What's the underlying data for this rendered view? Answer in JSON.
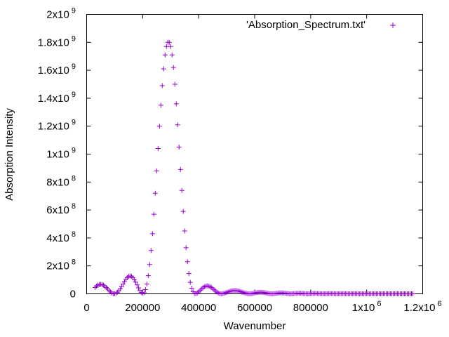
{
  "chart_data": {
    "type": "scatter",
    "xlabel": "Wavenumber",
    "ylabel": "Absorption Intensity",
    "xlim": [
      0,
      1200000
    ],
    "ylim": [
      0,
      2000000000
    ],
    "x_ticks": [
      {
        "value": 0,
        "label": "0"
      },
      {
        "value": 200000,
        "label": "200000"
      },
      {
        "value": 400000,
        "label": "400000"
      },
      {
        "value": 600000,
        "label": "600000"
      },
      {
        "value": 800000,
        "label": "800000"
      },
      {
        "value": 1000000,
        "mant": "1x10",
        "exp": "6"
      },
      {
        "value": 1200000,
        "mant": "1.2x10",
        "exp": "6"
      }
    ],
    "y_ticks": [
      {
        "value": 0,
        "label": "0"
      },
      {
        "value": 200000000,
        "mant": "2x10",
        "exp": "8"
      },
      {
        "value": 400000000,
        "mant": "4x10",
        "exp": "8"
      },
      {
        "value": 600000000,
        "mant": "6x10",
        "exp": "8"
      },
      {
        "value": 800000000,
        "mant": "8x10",
        "exp": "8"
      },
      {
        "value": 1000000000,
        "mant": "1x10",
        "exp": "9"
      },
      {
        "value": 1200000000,
        "mant": "1.2x10",
        "exp": "9"
      },
      {
        "value": 1400000000,
        "mant": "1.4x10",
        "exp": "9"
      },
      {
        "value": 1600000000,
        "mant": "1.6x10",
        "exp": "9"
      },
      {
        "value": 1800000000,
        "mant": "1.8x10",
        "exp": "9"
      },
      {
        "value": 2000000000,
        "mant": "2x10",
        "exp": "9"
      }
    ],
    "grid": false,
    "legend_position": "top-right",
    "marker": "+",
    "color": "#9400d3",
    "series": [
      {
        "name": "'Absorption_Spectrum.txt'",
        "points": [
          [
            30000,
            45000000
          ],
          [
            35000,
            55000000
          ],
          [
            40000,
            62000000
          ],
          [
            45000,
            66000000
          ],
          [
            50000,
            68000000
          ],
          [
            55000,
            66000000
          ],
          [
            60000,
            62000000
          ],
          [
            65000,
            54000000
          ],
          [
            70000,
            45000000
          ],
          [
            75000,
            35000000
          ],
          [
            80000,
            24000000
          ],
          [
            85000,
            14000000
          ],
          [
            90000,
            6000000
          ],
          [
            95000,
            1500000
          ],
          [
            100000,
            800000
          ],
          [
            105000,
            4000000
          ],
          [
            110000,
            11000000
          ],
          [
            115000,
            22000000
          ],
          [
            120000,
            36000000
          ],
          [
            125000,
            52000000
          ],
          [
            130000,
            70000000
          ],
          [
            135000,
            88000000
          ],
          [
            140000,
            103000000
          ],
          [
            145000,
            116000000
          ],
          [
            150000,
            125000000
          ],
          [
            155000,
            128000000
          ],
          [
            160000,
            125000000
          ],
          [
            165000,
            116000000
          ],
          [
            170000,
            102000000
          ],
          [
            175000,
            84000000
          ],
          [
            180000,
            64000000
          ],
          [
            185000,
            43000000
          ],
          [
            190000,
            24000000
          ],
          [
            195000,
            10000000
          ],
          [
            200000,
            3000000
          ],
          [
            205000,
            8000000
          ],
          [
            210000,
            30000000
          ],
          [
            215000,
            70000000
          ],
          [
            220000,
            130000000
          ],
          [
            225000,
            210000000
          ],
          [
            230000,
            310000000
          ],
          [
            235000,
            430000000
          ],
          [
            240000,
            570000000
          ],
          [
            245000,
            720000000
          ],
          [
            250000,
            880000000
          ],
          [
            255000,
            1040000000
          ],
          [
            260000,
            1200000000
          ],
          [
            265000,
            1350000000
          ],
          [
            270000,
            1490000000
          ],
          [
            275000,
            1610000000
          ],
          [
            280000,
            1710000000
          ],
          [
            285000,
            1770000000
          ],
          [
            290000,
            1800000000
          ],
          [
            295000,
            1800000000
          ],
          [
            300000,
            1770000000
          ],
          [
            305000,
            1710000000
          ],
          [
            310000,
            1620000000
          ],
          [
            315000,
            1500000000
          ],
          [
            320000,
            1360000000
          ],
          [
            325000,
            1210000000
          ],
          [
            330000,
            1050000000
          ],
          [
            335000,
            890000000
          ],
          [
            340000,
            740000000
          ],
          [
            345000,
            590000000
          ],
          [
            350000,
            450000000
          ],
          [
            355000,
            330000000
          ],
          [
            360000,
            230000000
          ],
          [
            365000,
            145000000
          ],
          [
            370000,
            82000000
          ],
          [
            375000,
            40000000
          ],
          [
            380000,
            15000000
          ],
          [
            385000,
            3000000
          ],
          [
            390000,
            1000000
          ],
          [
            395000,
            6000000
          ],
          [
            400000,
            14000000
          ],
          [
            405000,
            24000000
          ],
          [
            410000,
            34000000
          ],
          [
            415000,
            43000000
          ],
          [
            420000,
            50000000
          ],
          [
            425000,
            55000000
          ],
          [
            430000,
            57000000
          ],
          [
            435000,
            56000000
          ],
          [
            440000,
            52000000
          ],
          [
            445000,
            46000000
          ],
          [
            450000,
            38000000
          ],
          [
            455000,
            29000000
          ],
          [
            460000,
            20000000
          ],
          [
            465000,
            12000000
          ],
          [
            470000,
            6000000
          ],
          [
            475000,
            2000000
          ],
          [
            480000,
            500000
          ],
          [
            485000,
            1000000
          ],
          [
            490000,
            3000000
          ],
          [
            495000,
            6000000
          ],
          [
            500000,
            10000000
          ],
          [
            505000,
            14000000
          ],
          [
            510000,
            17000000
          ],
          [
            515000,
            20000000
          ],
          [
            520000,
            22000000
          ],
          [
            525000,
            23000000
          ],
          [
            530000,
            23500000
          ],
          [
            535000,
            23000000
          ],
          [
            540000,
            21500000
          ],
          [
            545000,
            19000000
          ],
          [
            550000,
            16000000
          ],
          [
            555000,
            12500000
          ],
          [
            560000,
            9000000
          ],
          [
            565000,
            6000000
          ],
          [
            570000,
            3500000
          ],
          [
            575000,
            1500000
          ],
          [
            580000,
            500000
          ],
          [
            585000,
            800000
          ],
          [
            590000,
            2000000
          ],
          [
            595000,
            4000000
          ],
          [
            600000,
            6000000
          ],
          [
            605000,
            8000000
          ],
          [
            610000,
            9500000
          ],
          [
            615000,
            10500000
          ],
          [
            620000,
            11000000
          ],
          [
            625000,
            11000000
          ],
          [
            630000,
            10000000
          ],
          [
            635000,
            8500000
          ],
          [
            640000,
            6500000
          ],
          [
            645000,
            4500000
          ],
          [
            650000,
            2500000
          ],
          [
            655000,
            1200000
          ],
          [
            660000,
            500000
          ],
          [
            665000,
            700000
          ],
          [
            670000,
            1500000
          ],
          [
            675000,
            2800000
          ],
          [
            680000,
            4200000
          ],
          [
            685000,
            5500000
          ],
          [
            690000,
            6300000
          ],
          [
            695000,
            6600000
          ],
          [
            700000,
            6400000
          ],
          [
            705000,
            5700000
          ],
          [
            710000,
            4500000
          ],
          [
            715000,
            3200000
          ],
          [
            720000,
            1900000
          ],
          [
            725000,
            900000
          ],
          [
            730000,
            300000
          ],
          [
            735000,
            500000
          ],
          [
            740000,
            1200000
          ],
          [
            745000,
            2200000
          ],
          [
            750000,
            3200000
          ],
          [
            755000,
            3900000
          ],
          [
            760000,
            4200000
          ],
          [
            765000,
            4000000
          ],
          [
            770000,
            3400000
          ],
          [
            775000,
            2500000
          ],
          [
            780000,
            1500000
          ],
          [
            785000,
            700000
          ],
          [
            790000,
            200000
          ],
          [
            795000,
            400000
          ],
          [
            800000,
            1000000
          ],
          [
            805000,
            1800000
          ],
          [
            810000,
            2500000
          ],
          [
            815000,
            2900000
          ],
          [
            820000,
            2900000
          ],
          [
            825000,
            2500000
          ],
          [
            830000,
            1800000
          ],
          [
            835000,
            1100000
          ],
          [
            840000,
            500000
          ],
          [
            845000,
            200000
          ],
          [
            850000,
            400000
          ],
          [
            855000,
            900000
          ],
          [
            860000,
            1500000
          ],
          [
            865000,
            1900000
          ],
          [
            870000,
            2000000
          ],
          [
            875000,
            1800000
          ],
          [
            880000,
            1300000
          ],
          [
            885000,
            800000
          ],
          [
            890000,
            300000
          ],
          [
            895000,
            200000
          ],
          [
            900000,
            500000
          ],
          [
            905000,
            1000000
          ],
          [
            910000,
            1400000
          ],
          [
            915000,
            1500000
          ],
          [
            920000,
            1300000
          ],
          [
            925000,
            900000
          ],
          [
            930000,
            500000
          ],
          [
            935000,
            200000
          ],
          [
            940000,
            300000
          ],
          [
            945000,
            700000
          ],
          [
            950000,
            1000000
          ],
          [
            955000,
            1200000
          ],
          [
            960000,
            1100000
          ],
          [
            965000,
            800000
          ],
          [
            970000,
            400000
          ],
          [
            975000,
            200000
          ],
          [
            980000,
            300000
          ],
          [
            985000,
            600000
          ],
          [
            990000,
            900000
          ],
          [
            995000,
            1000000
          ],
          [
            1000000,
            900000
          ],
          [
            1005000,
            600000
          ],
          [
            1010000,
            300000
          ],
          [
            1015000,
            200000
          ],
          [
            1020000,
            400000
          ],
          [
            1025000,
            600000
          ],
          [
            1030000,
            800000
          ],
          [
            1035000,
            800000
          ],
          [
            1040000,
            600000
          ],
          [
            1045000,
            400000
          ],
          [
            1050000,
            200000
          ],
          [
            1055000,
            200000
          ],
          [
            1060000,
            400000
          ],
          [
            1065000,
            600000
          ],
          [
            1070000,
            700000
          ],
          [
            1075000,
            600000
          ],
          [
            1080000,
            400000
          ],
          [
            1085000,
            200000
          ],
          [
            1090000,
            200000
          ],
          [
            1095000,
            300000
          ],
          [
            1100000,
            500000
          ],
          [
            1105000,
            600000
          ],
          [
            1110000,
            500000
          ],
          [
            1115000,
            300000
          ],
          [
            1120000,
            200000
          ],
          [
            1125000,
            200000
          ],
          [
            1130000,
            400000
          ],
          [
            1135000,
            500000
          ],
          [
            1140000,
            500000
          ],
          [
            1145000,
            300000
          ],
          [
            1150000,
            200000
          ],
          [
            1155000,
            200000
          ],
          [
            1160000,
            300000
          ],
          [
            1165000,
            400000
          ]
        ]
      }
    ]
  }
}
